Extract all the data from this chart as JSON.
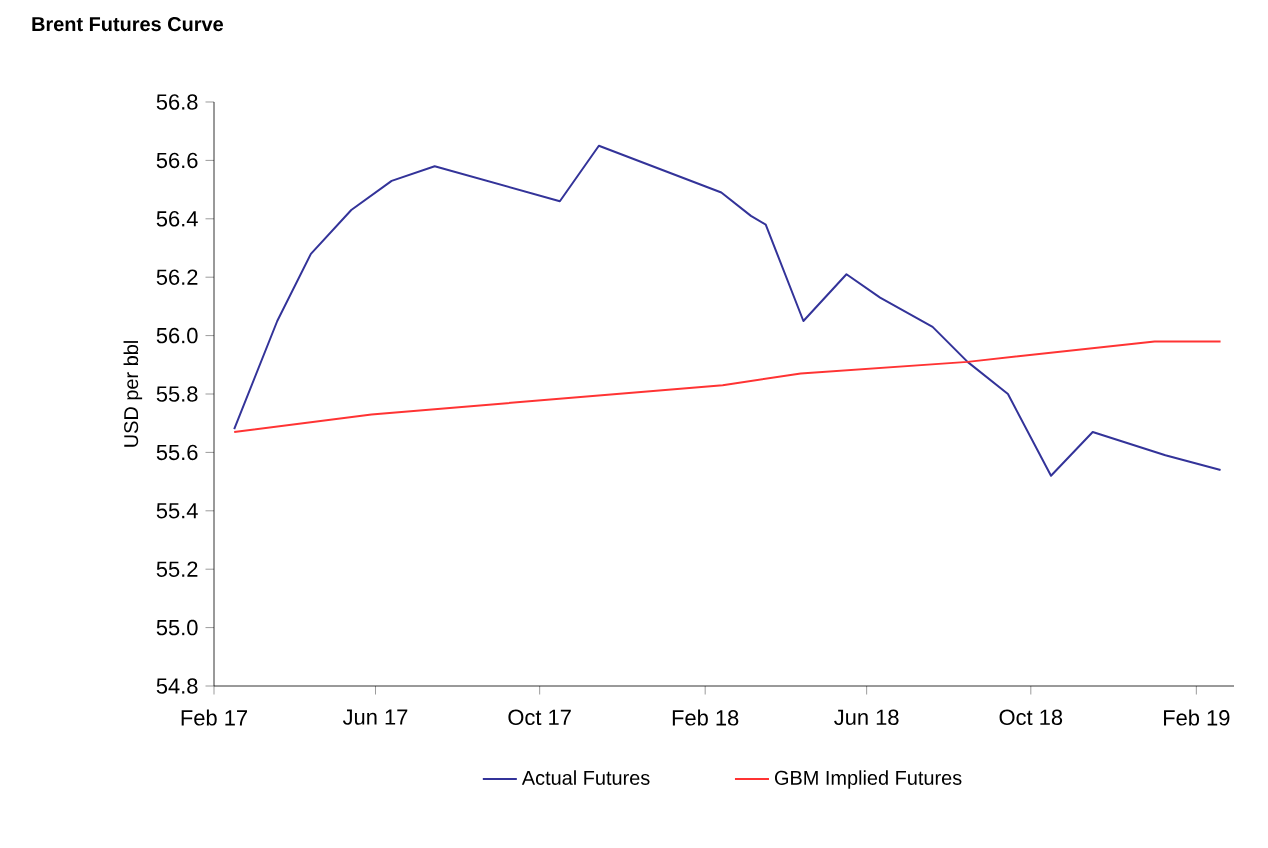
{
  "chart_data": {
    "type": "line",
    "title": "Brent Futures Curve",
    "ylabel": "USD per bbl",
    "xlim": [
      "2017-02-01",
      "2019-03-01"
    ],
    "xticks": [
      {
        "value": "2017-02-01",
        "label": "Feb 17"
      },
      {
        "value": "2017-06-01",
        "label": "Jun 17"
      },
      {
        "value": "2017-10-01",
        "label": "Oct 17"
      },
      {
        "value": "2018-02-01",
        "label": "Feb 18"
      },
      {
        "value": "2018-06-01",
        "label": "Jun 18"
      },
      {
        "value": "2018-10-01",
        "label": "Oct 18"
      },
      {
        "value": "2019-02-01",
        "label": "Feb 19"
      }
    ],
    "ylim": [
      54.8,
      56.8
    ],
    "yticks": [
      {
        "value": 54.8,
        "label": "54.8"
      },
      {
        "value": 55.0,
        "label": "55.0"
      },
      {
        "value": 55.2,
        "label": "55.2"
      },
      {
        "value": 55.4,
        "label": "55.4"
      },
      {
        "value": 55.6,
        "label": "55.6"
      },
      {
        "value": 55.8,
        "label": "55.8"
      },
      {
        "value": 56.0,
        "label": "56.0"
      },
      {
        "value": 56.2,
        "label": "56.2"
      },
      {
        "value": 56.4,
        "label": "56.4"
      },
      {
        "value": 56.6,
        "label": "56.6"
      },
      {
        "value": 56.8,
        "label": "56.8"
      }
    ],
    "grid": false,
    "legend": "bottom",
    "marker": "none",
    "line_style": "solid",
    "series": [
      {
        "name": "Actual Futures",
        "color": "#333399",
        "x": [
          "2017-02-16",
          "2017-03-20",
          "2017-04-14",
          "2017-05-14",
          "2017-06-13",
          "2017-07-15",
          "2017-10-16",
          "2017-11-14",
          "2018-02-13",
          "2018-03-07",
          "2018-03-18",
          "2018-04-15",
          "2018-05-17",
          "2018-06-11",
          "2018-07-20",
          "2018-08-15",
          "2018-09-14",
          "2018-10-16",
          "2018-11-16",
          "2019-01-09",
          "2019-02-19"
        ],
        "values": [
          55.68,
          56.05,
          56.28,
          56.43,
          56.53,
          56.58,
          56.46,
          56.65,
          56.49,
          56.41,
          56.38,
          56.05,
          56.21,
          56.13,
          56.03,
          55.91,
          55.8,
          55.52,
          55.67,
          55.59,
          55.54
        ]
      },
      {
        "name": "GBM Implied Futures",
        "color": "#ff3333",
        "x": [
          "2017-02-16",
          "2017-05-29",
          "2018-02-14",
          "2018-04-13",
          "2018-08-15",
          "2019-01-01",
          "2019-02-19"
        ],
        "values": [
          55.67,
          55.73,
          55.83,
          55.87,
          55.91,
          55.98,
          55.98
        ]
      }
    ]
  }
}
